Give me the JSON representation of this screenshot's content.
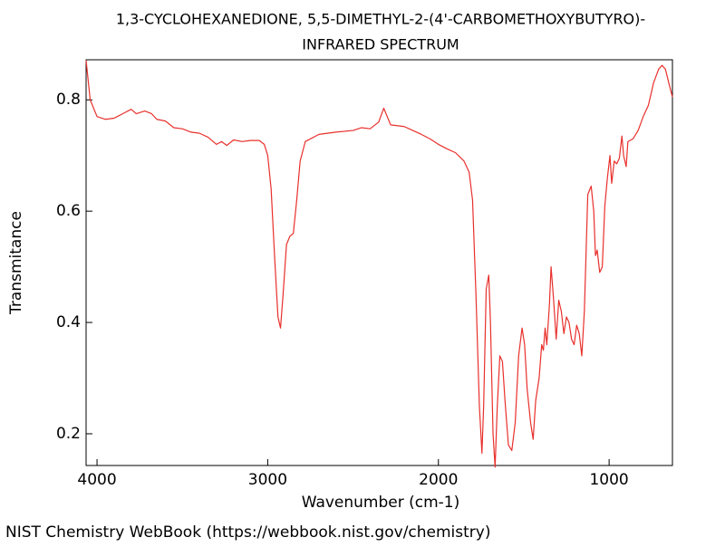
{
  "chart_data": {
    "type": "line",
    "title": "1,3-CYCLOHEXANEDIONE, 5,5-DIMETHYL-2-(4'-CARBOMETHOXYBUTYRO)-",
    "subtitle": "INFRARED SPECTRUM",
    "x_label": "Wavenumber (cm-1)",
    "y_label": "Transmitance",
    "source": "NIST Chemistry WebBook (https://webbook.nist.gov/chemistry)",
    "color": "#e8302c",
    "xlim": [
      4064,
      629
    ],
    "xticks": [
      4000,
      3000,
      2000,
      1000
    ],
    "ylim": [
      0.143,
      0.872
    ],
    "yticks": [
      0.2,
      0.4,
      0.6,
      0.8
    ],
    "x": [
      4064,
      4040,
      4000,
      3950,
      3900,
      3850,
      3800,
      3770,
      3720,
      3680,
      3650,
      3600,
      3550,
      3500,
      3450,
      3400,
      3350,
      3300,
      3270,
      3240,
      3200,
      3150,
      3100,
      3050,
      3020,
      3000,
      2980,
      2960,
      2940,
      2925,
      2910,
      2890,
      2870,
      2850,
      2830,
      2810,
      2780,
      2700,
      2600,
      2500,
      2450,
      2400,
      2350,
      2320,
      2300,
      2280,
      2200,
      2150,
      2100,
      2050,
      2000,
      1950,
      1900,
      1850,
      1820,
      1800,
      1780,
      1760,
      1745,
      1735,
      1720,
      1705,
      1695,
      1680,
      1668,
      1655,
      1640,
      1625,
      1610,
      1590,
      1570,
      1550,
      1530,
      1510,
      1495,
      1480,
      1460,
      1445,
      1430,
      1410,
      1395,
      1385,
      1375,
      1365,
      1350,
      1340,
      1325,
      1310,
      1295,
      1280,
      1265,
      1250,
      1235,
      1220,
      1205,
      1190,
      1175,
      1160,
      1145,
      1125,
      1105,
      1090,
      1080,
      1070,
      1055,
      1040,
      1025,
      1010,
      995,
      985,
      970,
      955,
      940,
      925,
      915,
      900,
      890,
      860,
      830,
      800,
      770,
      740,
      710,
      690,
      670,
      650,
      629
    ],
    "values": [
      0.871,
      0.8,
      0.77,
      0.765,
      0.767,
      0.775,
      0.783,
      0.775,
      0.78,
      0.775,
      0.765,
      0.762,
      0.75,
      0.748,
      0.742,
      0.74,
      0.733,
      0.72,
      0.725,
      0.718,
      0.728,
      0.725,
      0.727,
      0.727,
      0.72,
      0.7,
      0.64,
      0.52,
      0.41,
      0.39,
      0.45,
      0.54,
      0.555,
      0.56,
      0.62,
      0.69,
      0.725,
      0.738,
      0.742,
      0.745,
      0.75,
      0.748,
      0.76,
      0.785,
      0.77,
      0.755,
      0.752,
      0.745,
      0.738,
      0.73,
      0.72,
      0.712,
      0.705,
      0.69,
      0.67,
      0.62,
      0.45,
      0.25,
      0.165,
      0.25,
      0.46,
      0.485,
      0.4,
      0.2,
      0.14,
      0.25,
      0.34,
      0.33,
      0.26,
      0.18,
      0.17,
      0.22,
      0.34,
      0.39,
      0.36,
      0.28,
      0.22,
      0.19,
      0.26,
      0.3,
      0.36,
      0.35,
      0.39,
      0.36,
      0.43,
      0.5,
      0.44,
      0.37,
      0.44,
      0.42,
      0.38,
      0.41,
      0.4,
      0.37,
      0.36,
      0.395,
      0.38,
      0.34,
      0.42,
      0.63,
      0.645,
      0.6,
      0.52,
      0.53,
      0.49,
      0.5,
      0.61,
      0.66,
      0.7,
      0.65,
      0.69,
      0.685,
      0.695,
      0.735,
      0.7,
      0.68,
      0.725,
      0.73,
      0.745,
      0.77,
      0.79,
      0.83,
      0.855,
      0.862,
      0.855,
      0.83,
      0.805
    ]
  }
}
